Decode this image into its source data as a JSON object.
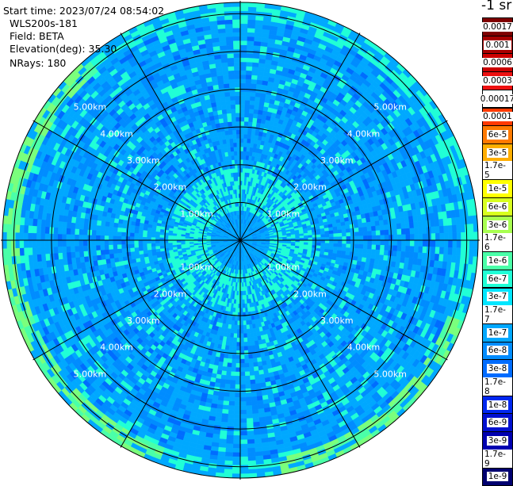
{
  "info": {
    "start_time": "Start time: 2023/07/24 08:54:02",
    "station": "WLS200s-181",
    "field": "Field: BETA",
    "elevation": "Elevation(deg): 35.30",
    "nrays": "NRays: 180"
  },
  "colorbar": {
    "title": "-1 sr",
    "entries": [
      {
        "label": "0.0017",
        "color": "#7f0000"
      },
      {
        "label": "0.001",
        "color": "#a80000"
      },
      {
        "label": "0.0006",
        "color": "#cc0000"
      },
      {
        "label": "0.0003",
        "color": "#ee1010"
      },
      {
        "label": "0.00017",
        "color": "#ffffff"
      },
      {
        "label": "0.0001",
        "color": "#ff3a00"
      },
      {
        "label": "6e-5",
        "color": "#ff7a00"
      },
      {
        "label": "3e-5",
        "color": "#ffae00"
      },
      {
        "label": "1.7e-5",
        "color": "#ffd600"
      },
      {
        "label": "1e-5",
        "color": "#ffff00"
      },
      {
        "label": "6e-6",
        "color": "#d8ff1e"
      },
      {
        "label": "3e-6",
        "color": "#a8ff50"
      },
      {
        "label": "1.7e-6",
        "color": "#7aff7c"
      },
      {
        "label": "1e-6",
        "color": "#4affa8"
      },
      {
        "label": "6e-7",
        "color": "#20ffd6"
      },
      {
        "label": "3e-7",
        "color": "#00e6ff"
      },
      {
        "label": "1.7e-7",
        "color": "#00c8ff"
      },
      {
        "label": "1e-7",
        "color": "#00a8ff"
      },
      {
        "label": "6e-8",
        "color": "#008cff"
      },
      {
        "label": "3e-8",
        "color": "#006cff"
      },
      {
        "label": "1.7e-8",
        "color": "#0048ff"
      },
      {
        "label": "1e-8",
        "color": "#0028f0"
      },
      {
        "label": "6e-9",
        "color": "#0010d0"
      },
      {
        "label": "3e-9",
        "color": "#0000b0"
      },
      {
        "label": "1.7e-9",
        "color": "#00008a"
      },
      {
        "label": "1e-9",
        "color": "#000070"
      }
    ]
  },
  "chart_data": {
    "type": "heatmap",
    "projection": "polar",
    "field": "BETA",
    "units": "sr^-1",
    "elevation_deg": 35.3,
    "n_rays": 180,
    "range_rings_km": [
      1,
      2,
      3,
      4,
      5,
      6
    ],
    "ring_labels": [
      "1.00km",
      "2.00km",
      "3.00km",
      "4.00km",
      "5.00km"
    ],
    "max_range_km": 6.3,
    "spoke_angles_deg": [
      0,
      30,
      60,
      90,
      120,
      150,
      180,
      210,
      240,
      270,
      300,
      330
    ],
    "background_color_levels": [
      "1e-7",
      "6e-8",
      "3e-8"
    ],
    "edge_color_levels": [
      "1.7e-6",
      "1e-6",
      "6e-7"
    ]
  }
}
